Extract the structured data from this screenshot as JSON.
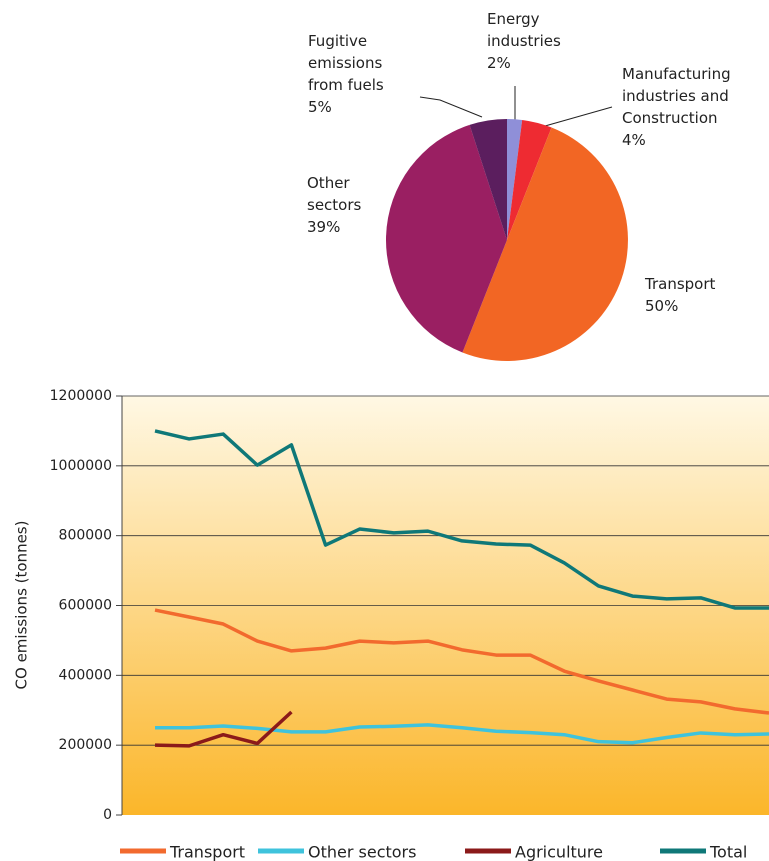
{
  "chart_data": [
    {
      "type": "pie",
      "categories": [
        "Energy industries",
        "Manufacturing industries and Construction",
        "Transport",
        "Other sectors",
        "Fugitive emissions from fuels"
      ],
      "values": [
        2,
        4,
        50,
        39,
        5
      ],
      "value_labels": [
        "2%",
        "4%",
        "50%",
        "39%",
        "5%"
      ],
      "colors": [
        "#8f8fd8",
        "#ee2b32",
        "#f26624",
        "#9a1f62",
        "#5b1e5e"
      ]
    },
    {
      "type": "line",
      "ylabel": "CO emissions (tonnes)",
      "categories": [
        null,
        null,
        null,
        null,
        null,
        null,
        null,
        null,
        null,
        null,
        null,
        null,
        null,
        null,
        null,
        null,
        null,
        null,
        null
      ],
      "ylim": [
        0,
        1200000
      ],
      "yticks": [
        0,
        200000,
        400000,
        600000,
        800000,
        1000000,
        1200000
      ],
      "grid": true,
      "series": [
        {
          "name": "Transport",
          "color": "#f26a2e",
          "values": [
            587000,
            567000,
            547000,
            498000,
            470000,
            478000,
            498000,
            493000,
            498000,
            473000,
            458000,
            458000,
            412000,
            384000,
            358000,
            332000,
            324000,
            304000,
            292000
          ]
        },
        {
          "name": "Other sectors",
          "color": "#3fc3dc",
          "values": [
            250000,
            250000,
            255000,
            248000,
            238000,
            238000,
            252000,
            254000,
            258000,
            250000,
            240000,
            236000,
            230000,
            210000,
            207000,
            222000,
            235000,
            230000,
            232000
          ]
        },
        {
          "name": "Agriculture",
          "color": "#8b1a1a",
          "values": [
            200000,
            198000,
            230000,
            205000,
            295000,
            null,
            null,
            null,
            null,
            null,
            null,
            null,
            null,
            null,
            null,
            null,
            null,
            null,
            null
          ]
        },
        {
          "name": "Total",
          "color": "#0f7878",
          "values": [
            1100000,
            1077000,
            1091000,
            1002000,
            1060000,
            773000,
            819000,
            808000,
            813000,
            785000,
            776000,
            773000,
            722000,
            656000,
            627000,
            619000,
            622000,
            593000,
            593000
          ]
        }
      ]
    }
  ]
}
